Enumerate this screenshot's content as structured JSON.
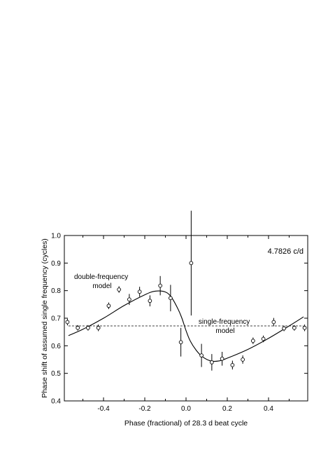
{
  "chart_data": {
    "type": "scatter",
    "title": "",
    "annotation_top_right": "4.7826 c/d",
    "xlabel": "Phase (fractional) of 28.3 d beat cycle",
    "ylabel": "Phase shift of assumed single frequency (cycles)",
    "xlim": [
      -0.59,
      0.59
    ],
    "ylim": [
      0.4,
      1.0
    ],
    "x_ticks": [
      -0.4,
      -0.2,
      0.0,
      0.2,
      0.4
    ],
    "x_tick_labels": [
      "-0.4",
      "-0.2",
      "0.0",
      "0.2",
      "0.4"
    ],
    "y_ticks": [
      0.4,
      0.5,
      0.6,
      0.7,
      0.8,
      0.9,
      1.0
    ],
    "y_tick_labels": [
      "0.4",
      "0.5",
      "0.6",
      "0.7",
      "0.8",
      "0.9",
      "1.0"
    ],
    "grid": false,
    "points": [
      {
        "x": -0.575,
        "y": 0.686,
        "err": 0.012
      },
      {
        "x": -0.525,
        "y": 0.665,
        "err": 0.01
      },
      {
        "x": -0.475,
        "y": 0.665,
        "err": 0.01
      },
      {
        "x": -0.425,
        "y": 0.665,
        "err": 0.012
      },
      {
        "x": -0.375,
        "y": 0.745,
        "err": 0.012
      },
      {
        "x": -0.325,
        "y": 0.804,
        "err": 0.012
      },
      {
        "x": -0.275,
        "y": 0.768,
        "err": 0.02
      },
      {
        "x": -0.225,
        "y": 0.796,
        "err": 0.018
      },
      {
        "x": -0.175,
        "y": 0.763,
        "err": 0.02
      },
      {
        "x": -0.125,
        "y": 0.818,
        "err": 0.035
      },
      {
        "x": -0.075,
        "y": 0.773,
        "err": 0.048
      },
      {
        "x": -0.025,
        "y": 0.613,
        "err": 0.052
      },
      {
        "x": 0.025,
        "y": 0.9,
        "err": 0.19
      },
      {
        "x": 0.075,
        "y": 0.565,
        "err": 0.042
      },
      {
        "x": 0.125,
        "y": 0.54,
        "err": 0.03
      },
      {
        "x": 0.175,
        "y": 0.553,
        "err": 0.025
      },
      {
        "x": 0.225,
        "y": 0.53,
        "err": 0.016
      },
      {
        "x": 0.275,
        "y": 0.55,
        "err": 0.015
      },
      {
        "x": 0.325,
        "y": 0.618,
        "err": 0.012
      },
      {
        "x": 0.375,
        "y": 0.625,
        "err": 0.012
      },
      {
        "x": 0.425,
        "y": 0.686,
        "err": 0.015
      },
      {
        "x": 0.475,
        "y": 0.663,
        "err": 0.01
      },
      {
        "x": 0.525,
        "y": 0.665,
        "err": 0.01
      },
      {
        "x": 0.575,
        "y": 0.665,
        "err": 0.012
      }
    ],
    "double_frequency_model": {
      "label": "double-frequency\nmodel",
      "x": [
        -0.57,
        -0.5,
        -0.4,
        -0.3,
        -0.2,
        -0.15,
        -0.1,
        -0.07,
        -0.04,
        -0.02,
        0.0,
        0.02,
        0.05,
        0.08,
        0.12,
        0.16,
        0.2,
        0.3,
        0.4,
        0.5,
        0.57
      ],
      "y": [
        0.637,
        0.66,
        0.7,
        0.746,
        0.785,
        0.798,
        0.795,
        0.775,
        0.735,
        0.7,
        0.655,
        0.618,
        0.583,
        0.56,
        0.545,
        0.545,
        0.555,
        0.587,
        0.627,
        0.672,
        0.705
      ]
    },
    "single_frequency_model": {
      "label": "single-frequency\nmodel",
      "y": 0.672,
      "x_range": [
        -0.57,
        0.57
      ],
      "style": "dashed"
    }
  }
}
